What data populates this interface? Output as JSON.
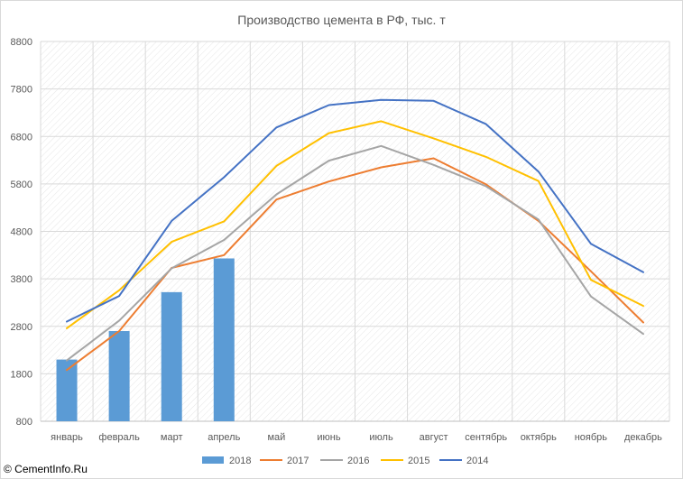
{
  "chart_data": {
    "type": "bar",
    "title": "Производство цемента в РФ, тыс. т",
    "categories": [
      "январь",
      "февраль",
      "март",
      "апрель",
      "май",
      "июнь",
      "июль",
      "август",
      "сентябрь",
      "октябрь",
      "ноябрь",
      "декабрь"
    ],
    "ylim": [
      800,
      8800
    ],
    "yticks": [
      800,
      1800,
      2800,
      3800,
      4800,
      5800,
      6800,
      7800,
      8800
    ],
    "grid": true,
    "legend_position": "bottom",
    "series": [
      {
        "name": "2018",
        "kind": "bar",
        "color": "#5b9bd5",
        "values": [
          2100,
          2700,
          3520,
          4230,
          null,
          null,
          null,
          null,
          null,
          null,
          null,
          null
        ]
      },
      {
        "name": "2017",
        "kind": "line",
        "color": "#ed7d31",
        "values": [
          1880,
          2700,
          4030,
          4300,
          5470,
          5850,
          6150,
          6340,
          5790,
          5020,
          3960,
          2880
        ]
      },
      {
        "name": "2016",
        "kind": "line",
        "color": "#a5a5a5",
        "values": [
          2080,
          2920,
          4020,
          4620,
          5580,
          6290,
          6600,
          6200,
          5750,
          5050,
          3430,
          2640
        ]
      },
      {
        "name": "2015",
        "kind": "line",
        "color": "#ffc000",
        "values": [
          2760,
          3560,
          4580,
          5010,
          6180,
          6870,
          7120,
          6760,
          6370,
          5860,
          3780,
          3230
        ]
      },
      {
        "name": "2014",
        "kind": "line",
        "color": "#4472c4",
        "values": [
          2900,
          3440,
          5020,
          5940,
          6990,
          7460,
          7570,
          7550,
          7060,
          6060,
          4540,
          3940
        ]
      }
    ]
  },
  "footer": {
    "watermark": "© CementInfo.Ru"
  }
}
